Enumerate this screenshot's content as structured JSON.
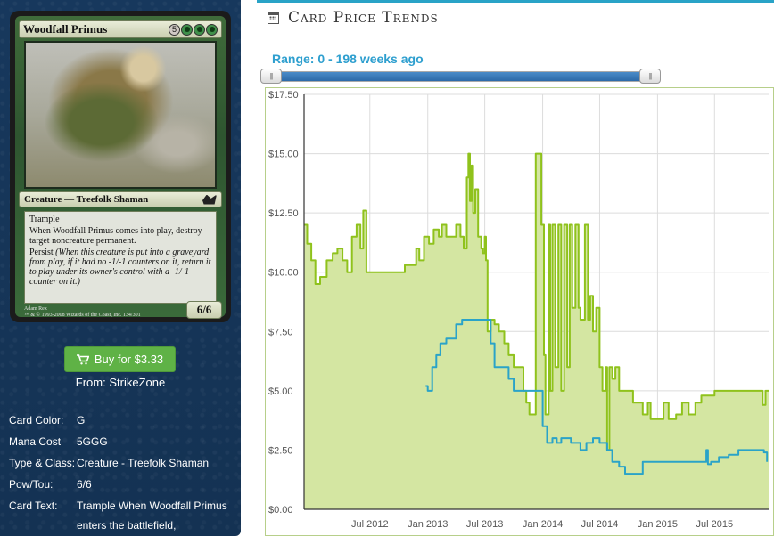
{
  "card": {
    "name": "Woodfall Primus",
    "mana_cost_symbols": [
      {
        "symbol": "5",
        "kind": "generic"
      },
      {
        "symbol": "G",
        "kind": "green"
      },
      {
        "symbol": "G",
        "kind": "green"
      },
      {
        "symbol": "G",
        "kind": "green"
      }
    ],
    "type_line": "Creature — Treefolk Shaman",
    "rules_text_keyword": "Trample",
    "rules_text_etb": "When Woodfall Primus comes into play, destroy target noncreature permanent.",
    "rules_text_persist": "Persist",
    "rules_text_persist_reminder": "(When this creature is put into a graveyard from play, if it had no -1/-1 counters on it, return it to play under its owner's control with a -1/-1 counter on it.)",
    "power_toughness": "6/6",
    "artist_line": "Adam Rex",
    "copyright_line": "™ & © 1993-2008 Wizards of the Coast, Inc. 134/301",
    "set_symbol_icon": "shadowmoor-set-icon"
  },
  "buy": {
    "icon": "cart-icon",
    "label": "Buy for $3.33",
    "from": "From: StrikeZone"
  },
  "details": [
    {
      "label": "Card Color:",
      "value": "G"
    },
    {
      "label": "Mana Cost",
      "value": "5GGG"
    },
    {
      "label": "Type & Class:",
      "value": "Creature - Treefolk Shaman"
    },
    {
      "label": "Pow/Tou:",
      "value": "6/6"
    },
    {
      "label": "Card Text:",
      "value": "Trample When Woodfall Primus enters the battlefield,"
    }
  ],
  "panel": {
    "icon": "calendar-icon",
    "title": "Card Price Trends",
    "range_label": "Range: 0 - 198 weeks ago",
    "slider_handle_glyph": "|||",
    "slider_min_weeks": 0,
    "slider_max_weeks": 198
  },
  "colors": {
    "sidebar_bg": "#16365a",
    "accent_blue": "#2e9fcf",
    "buy_green": "#5fb246",
    "series_green": "#8fc21c",
    "series_green_fill": "#d4e6a2",
    "series_blue": "#2aa3c8"
  },
  "chart_data": {
    "type": "line",
    "title": "",
    "xlabel": "",
    "ylabel": "",
    "ylim": [
      0,
      17.5
    ],
    "grid": true,
    "y_ticks": [
      0,
      2.5,
      5,
      7.5,
      10,
      12.5,
      15,
      17.5
    ],
    "y_tick_labels": [
      "$0.00",
      "$2.50",
      "$5.00",
      "$7.50",
      "$10.00",
      "$12.50",
      "$15.00",
      "$17.50"
    ],
    "x_ticks": [
      "2012-07-01",
      "2013-01-01",
      "2013-07-01",
      "2014-01-01",
      "2014-07-01",
      "2015-01-01",
      "2015-07-01"
    ],
    "x_tick_labels": [
      "Jul 2012",
      "Jan 2013",
      "Jul 2013",
      "Jan 2014",
      "Jul 2014",
      "Jan 2015",
      "Jul 2015"
    ],
    "xlim": [
      "2011-12-05",
      "2015-12-20"
    ],
    "series": [
      {
        "color": "#8fc21c",
        "filled": true,
        "points": [
          [
            "2011-12-05",
            12.0
          ],
          [
            "2011-12-15",
            11.2
          ],
          [
            "2011-12-28",
            10.5
          ],
          [
            "2012-01-10",
            9.5
          ],
          [
            "2012-01-25",
            9.8
          ],
          [
            "2012-02-15",
            10.5
          ],
          [
            "2012-03-05",
            10.8
          ],
          [
            "2012-03-20",
            11.0
          ],
          [
            "2012-04-05",
            10.5
          ],
          [
            "2012-04-20",
            10.0
          ],
          [
            "2012-05-05",
            11.5
          ],
          [
            "2012-05-20",
            12.0
          ],
          [
            "2012-06-01",
            11.0
          ],
          [
            "2012-06-10",
            12.6
          ],
          [
            "2012-06-20",
            10.0
          ],
          [
            "2012-07-10",
            10.0
          ],
          [
            "2012-08-01",
            10.0
          ],
          [
            "2012-08-20",
            10.0
          ],
          [
            "2012-09-10",
            10.0
          ],
          [
            "2012-10-01",
            10.0
          ],
          [
            "2012-10-20",
            10.3
          ],
          [
            "2012-11-10",
            10.3
          ],
          [
            "2012-11-25",
            11.0
          ],
          [
            "2012-12-05",
            10.5
          ],
          [
            "2012-12-20",
            11.5
          ],
          [
            "2013-01-05",
            11.2
          ],
          [
            "2013-01-20",
            11.8
          ],
          [
            "2013-02-05",
            11.5
          ],
          [
            "2013-02-15",
            12.0
          ],
          [
            "2013-03-01",
            11.5
          ],
          [
            "2013-03-20",
            11.5
          ],
          [
            "2013-04-01",
            12.0
          ],
          [
            "2013-04-15",
            11.5
          ],
          [
            "2013-04-25",
            11.0
          ],
          [
            "2013-05-05",
            14.0
          ],
          [
            "2013-05-10",
            15.0
          ],
          [
            "2013-05-15",
            13.0
          ],
          [
            "2013-05-20",
            14.5
          ],
          [
            "2013-05-25",
            12.5
          ],
          [
            "2013-06-01",
            13.5
          ],
          [
            "2013-06-10",
            11.5
          ],
          [
            "2013-06-20",
            11.0
          ],
          [
            "2013-06-25",
            10.8
          ],
          [
            "2013-07-01",
            11.5
          ],
          [
            "2013-07-05",
            10.5
          ],
          [
            "2013-07-10",
            7.5
          ],
          [
            "2013-07-20",
            8.0
          ],
          [
            "2013-08-01",
            7.8
          ],
          [
            "2013-08-15",
            7.5
          ],
          [
            "2013-09-01",
            7.0
          ],
          [
            "2013-09-15",
            6.5
          ],
          [
            "2013-10-01",
            6.0
          ],
          [
            "2013-10-15",
            6.0
          ],
          [
            "2013-11-01",
            5.0
          ],
          [
            "2013-11-10",
            4.5
          ],
          [
            "2013-11-20",
            4.0
          ],
          [
            "2013-12-01",
            4.0
          ],
          [
            "2013-12-10",
            15.0
          ],
          [
            "2013-12-20",
            15.0
          ],
          [
            "2013-12-28",
            12.0
          ],
          [
            "2014-01-05",
            6.5
          ],
          [
            "2014-01-10",
            4.0
          ],
          [
            "2014-01-20",
            12.0
          ],
          [
            "2014-01-25",
            5.0
          ],
          [
            "2014-02-01",
            12.0
          ],
          [
            "2014-02-10",
            6.0
          ],
          [
            "2014-02-20",
            12.0
          ],
          [
            "2014-03-01",
            5.0
          ],
          [
            "2014-03-10",
            12.0
          ],
          [
            "2014-03-20",
            6.0
          ],
          [
            "2014-03-28",
            12.0
          ],
          [
            "2014-04-05",
            8.5
          ],
          [
            "2014-04-15",
            12.0
          ],
          [
            "2014-04-25",
            8.5
          ],
          [
            "2014-05-01",
            8.0
          ],
          [
            "2014-05-15",
            12.0
          ],
          [
            "2014-05-25",
            8.0
          ],
          [
            "2014-06-01",
            9.0
          ],
          [
            "2014-06-10",
            7.5
          ],
          [
            "2014-06-20",
            8.5
          ],
          [
            "2014-07-01",
            6.0
          ],
          [
            "2014-07-10",
            5.0
          ],
          [
            "2014-07-20",
            6.0
          ],
          [
            "2014-07-25",
            2.5
          ],
          [
            "2014-08-01",
            6.0
          ],
          [
            "2014-08-10",
            5.5
          ],
          [
            "2014-08-20",
            6.0
          ],
          [
            "2014-09-01",
            5.0
          ],
          [
            "2014-09-15",
            5.0
          ],
          [
            "2014-10-01",
            5.0
          ],
          [
            "2014-10-15",
            4.5
          ],
          [
            "2014-11-01",
            4.5
          ],
          [
            "2014-11-15",
            4.0
          ],
          [
            "2014-12-01",
            4.5
          ],
          [
            "2014-12-10",
            3.8
          ],
          [
            "2015-01-01",
            3.8
          ],
          [
            "2015-01-20",
            4.5
          ],
          [
            "2015-02-05",
            3.8
          ],
          [
            "2015-03-01",
            4.0
          ],
          [
            "2015-03-20",
            4.5
          ],
          [
            "2015-04-10",
            4.0
          ],
          [
            "2015-05-01",
            4.5
          ],
          [
            "2015-05-20",
            4.8
          ],
          [
            "2015-06-10",
            4.8
          ],
          [
            "2015-07-01",
            5.0
          ],
          [
            "2015-08-01",
            5.0
          ],
          [
            "2015-09-01",
            5.0
          ],
          [
            "2015-10-01",
            5.0
          ],
          [
            "2015-11-01",
            5.0
          ],
          [
            "2015-11-20",
            5.0
          ],
          [
            "2015-12-01",
            4.4
          ],
          [
            "2015-12-10",
            5.0
          ],
          [
            "2015-12-20",
            5.0
          ]
        ]
      },
      {
        "color": "#2aa3c8",
        "filled": false,
        "points": [
          [
            "2012-12-25",
            5.2
          ],
          [
            "2013-01-01",
            5.0
          ],
          [
            "2013-01-15",
            6.0
          ],
          [
            "2013-01-28",
            6.5
          ],
          [
            "2013-02-10",
            7.0
          ],
          [
            "2013-03-01",
            7.2
          ],
          [
            "2013-03-15",
            7.2
          ],
          [
            "2013-04-01",
            7.8
          ],
          [
            "2013-04-20",
            8.0
          ],
          [
            "2013-05-10",
            8.0
          ],
          [
            "2013-06-01",
            8.0
          ],
          [
            "2013-06-20",
            8.0
          ],
          [
            "2013-07-10",
            8.0
          ],
          [
            "2013-07-20",
            7.0
          ],
          [
            "2013-08-01",
            6.0
          ],
          [
            "2013-08-20",
            6.0
          ],
          [
            "2013-09-15",
            5.5
          ],
          [
            "2013-10-01",
            5.0
          ],
          [
            "2013-11-01",
            5.0
          ],
          [
            "2013-12-01",
            5.0
          ],
          [
            "2014-01-01",
            3.5
          ],
          [
            "2014-01-15",
            2.8
          ],
          [
            "2014-02-01",
            3.0
          ],
          [
            "2014-02-15",
            2.8
          ],
          [
            "2014-03-01",
            3.0
          ],
          [
            "2014-04-01",
            2.8
          ],
          [
            "2014-05-01",
            2.5
          ],
          [
            "2014-05-20",
            2.8
          ],
          [
            "2014-06-10",
            3.0
          ],
          [
            "2014-07-01",
            2.8
          ],
          [
            "2014-07-25",
            2.5
          ],
          [
            "2014-08-10",
            2.0
          ],
          [
            "2014-09-01",
            1.8
          ],
          [
            "2014-09-20",
            1.5
          ],
          [
            "2014-10-20",
            1.5
          ],
          [
            "2014-11-15",
            2.0
          ],
          [
            "2014-12-15",
            2.0
          ],
          [
            "2015-01-15",
            2.0
          ],
          [
            "2015-03-01",
            2.0
          ],
          [
            "2015-05-01",
            2.0
          ],
          [
            "2015-06-05",
            2.5
          ],
          [
            "2015-06-10",
            1.9
          ],
          [
            "2015-06-20",
            2.0
          ],
          [
            "2015-07-15",
            2.2
          ],
          [
            "2015-08-15",
            2.3
          ],
          [
            "2015-09-15",
            2.5
          ],
          [
            "2015-10-15",
            2.5
          ],
          [
            "2015-11-15",
            2.5
          ],
          [
            "2015-12-05",
            2.4
          ],
          [
            "2015-12-15",
            2.0
          ]
        ]
      }
    ]
  }
}
